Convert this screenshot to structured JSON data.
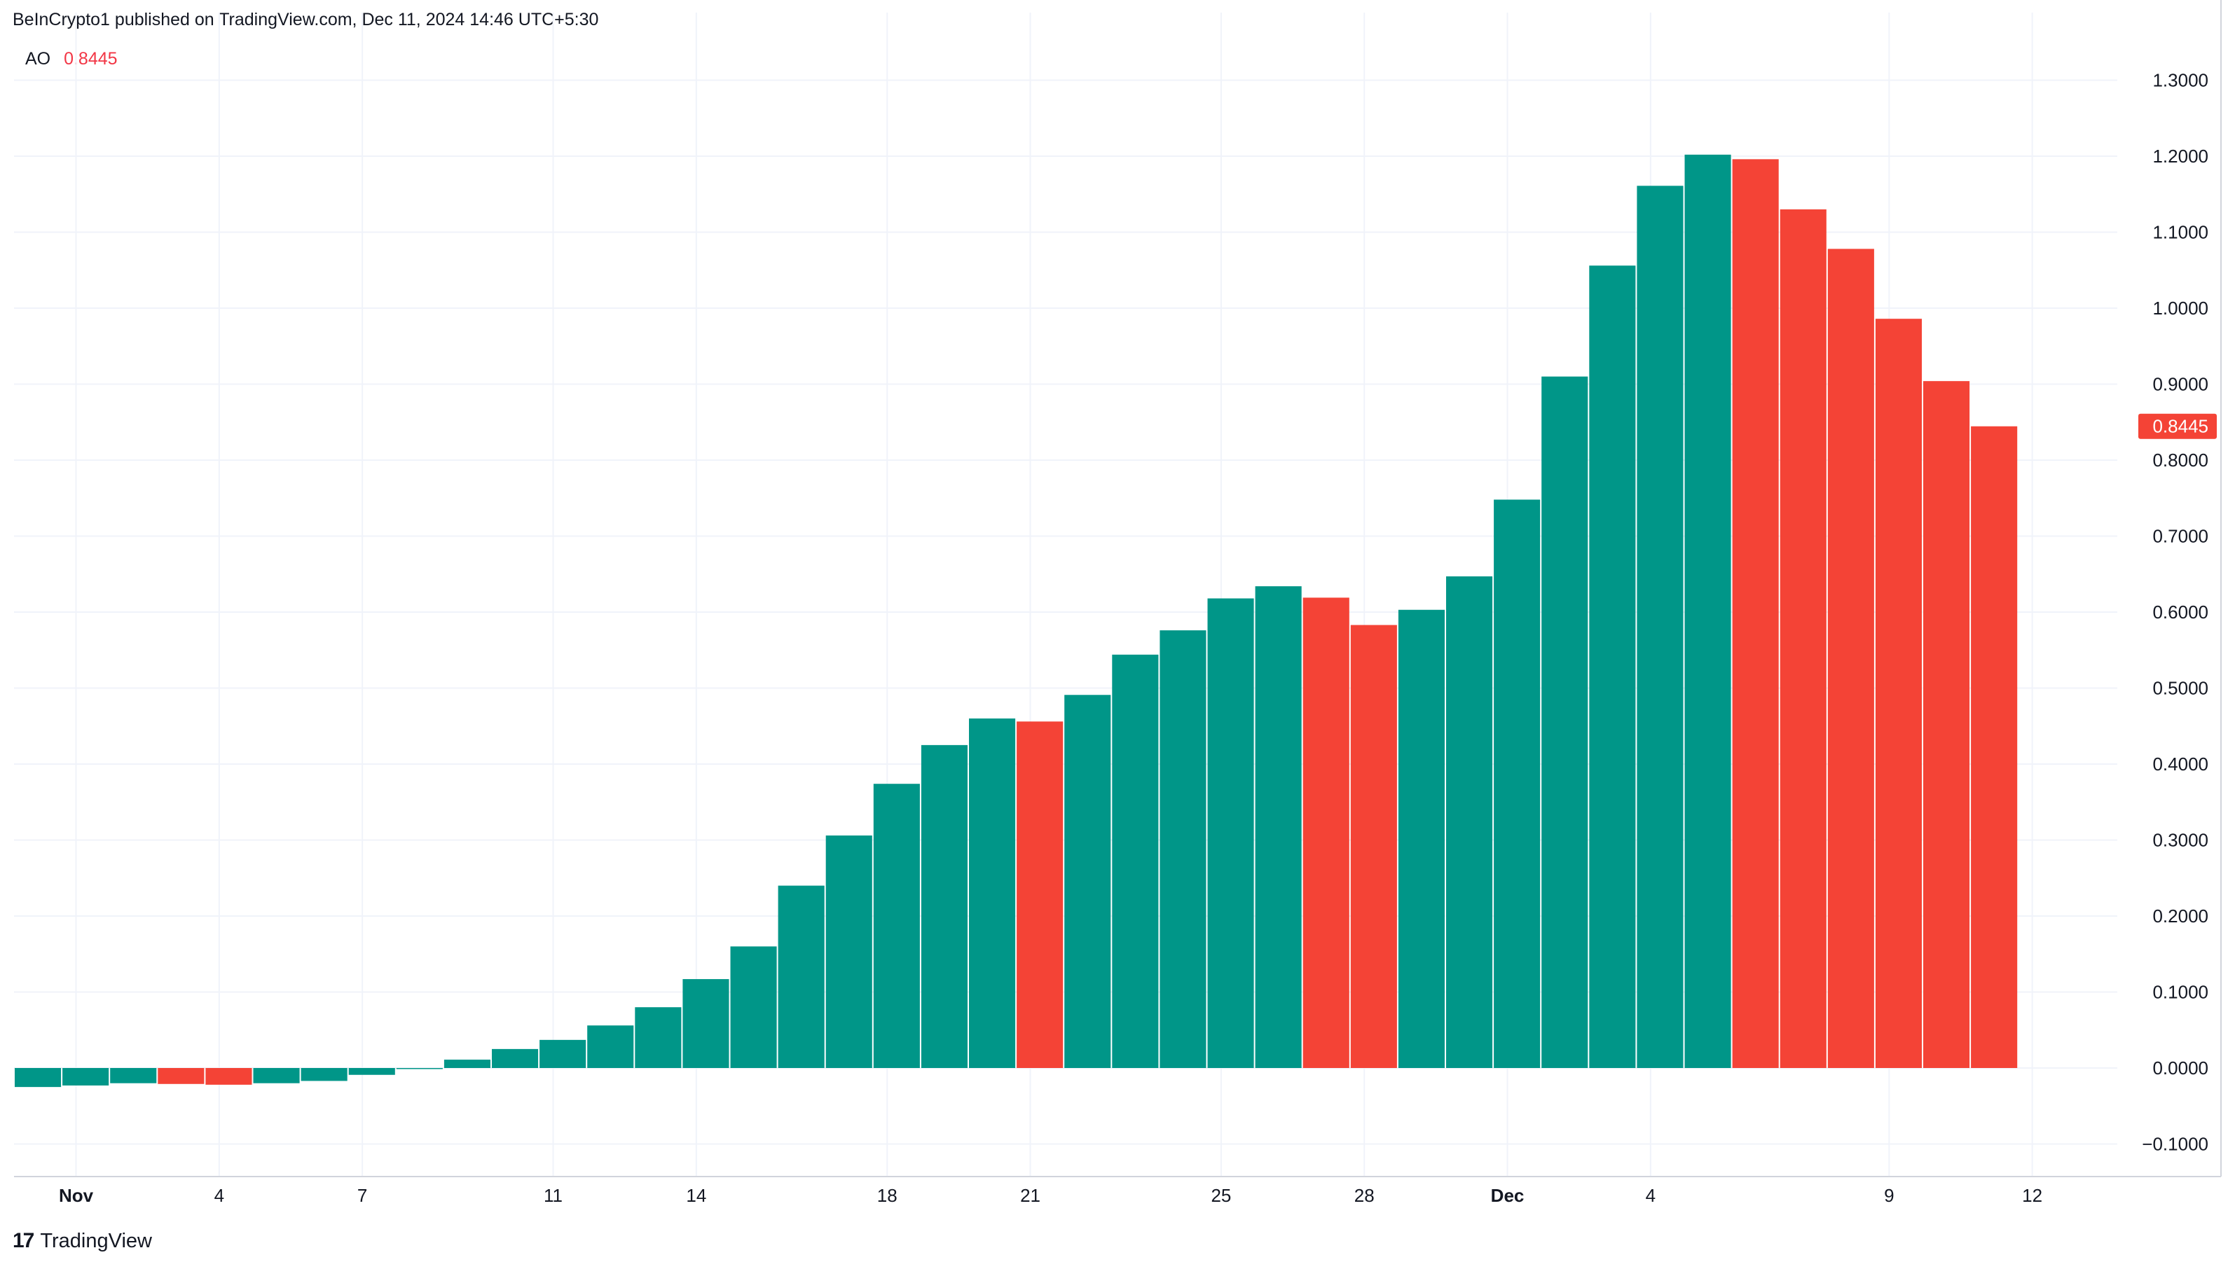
{
  "header": {
    "published_text": "BeInCrypto1 published on TradingView.com, Dec 11, 2024 14:46 UTC+5:30"
  },
  "legend": {
    "indicator": "AO",
    "value": "0.8445"
  },
  "branding": {
    "logo_mark": "17",
    "name": "TradingView"
  },
  "colors": {
    "up": "#089981",
    "up_fill": "#009688",
    "down": "#f44336",
    "grid": "#f0f3fa",
    "axis_text": "#131722"
  },
  "chart_data": {
    "type": "bar",
    "title": "AO",
    "xlabel": "",
    "ylabel": "",
    "ylim": [
      -0.155,
      1.355
    ],
    "y_ticks": [
      "1.3000",
      "1.2000",
      "1.1000",
      "1.0000",
      "0.9000",
      "0.8000",
      "0.7000",
      "0.6000",
      "0.5000",
      "0.4000",
      "0.3000",
      "0.2000",
      "0.1000",
      "0.0000",
      "−0.1000"
    ],
    "y_tick_values": [
      1.3,
      1.2,
      1.1,
      1.0,
      0.9,
      0.8,
      0.7,
      0.6,
      0.5,
      0.4,
      0.3,
      0.2,
      0.1,
      0.0,
      -0.1
    ],
    "x_ticks": [
      {
        "label": "Nov",
        "bar_index": 1.3,
        "bold": true
      },
      {
        "label": "4",
        "bar_index": 4.3,
        "bold": false
      },
      {
        "label": "7",
        "bar_index": 7.3,
        "bold": false
      },
      {
        "label": "11",
        "bar_index": 11.3,
        "bold": false
      },
      {
        "label": "14",
        "bar_index": 14.3,
        "bold": false
      },
      {
        "label": "18",
        "bar_index": 18.3,
        "bold": false
      },
      {
        "label": "21",
        "bar_index": 21.3,
        "bold": false
      },
      {
        "label": "25",
        "bar_index": 25.3,
        "bold": false
      },
      {
        "label": "28",
        "bar_index": 28.3,
        "bold": false
      },
      {
        "label": "Dec",
        "bar_index": 31.3,
        "bold": true
      },
      {
        "label": "4",
        "bar_index": 34.3,
        "bold": false
      },
      {
        "label": "9",
        "bar_index": 39.3,
        "bold": false
      },
      {
        "label": "12",
        "bar_index": 42.3,
        "bold": false
      }
    ],
    "x_axis_span_bars": 45.3,
    "last_value_label": "0.8445",
    "last_value": 0.8445,
    "series": [
      {
        "name": "AO",
        "values": [
          -0.025,
          -0.023,
          -0.02,
          -0.021,
          -0.022,
          -0.02,
          -0.017,
          -0.009,
          -0.001,
          0.011,
          0.025,
          0.037,
          0.056,
          0.08,
          0.117,
          0.16,
          0.24,
          0.306,
          0.374,
          0.425,
          0.46,
          0.456,
          0.491,
          0.544,
          0.576,
          0.618,
          0.634,
          0.619,
          0.583,
          0.603,
          0.647,
          0.748,
          0.91,
          1.056,
          1.161,
          1.202,
          1.196,
          1.13,
          1.078,
          0.986,
          0.904,
          0.8445
        ],
        "colors": [
          "up",
          "up",
          "up",
          "down",
          "down",
          "up",
          "up",
          "up",
          "up",
          "up",
          "up",
          "up",
          "up",
          "up",
          "up",
          "up",
          "up",
          "up",
          "up",
          "up",
          "up",
          "down",
          "up",
          "up",
          "up",
          "up",
          "up",
          "down",
          "down",
          "up",
          "up",
          "up",
          "up",
          "up",
          "up",
          "up",
          "down",
          "down",
          "down",
          "down",
          "down",
          "down"
        ]
      }
    ]
  }
}
